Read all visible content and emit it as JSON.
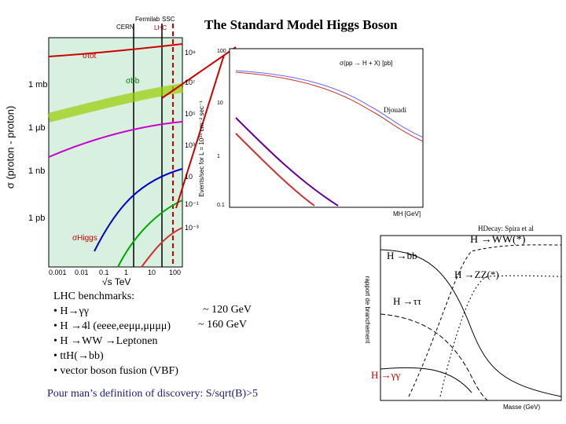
{
  "title": "The Standard Model Higgs Boson",
  "left_plot": {
    "labels_top": [
      "CERN",
      "Fermilab",
      "SSC",
      "LHC"
    ],
    "y_labels": [
      "1 mb",
      "1 μb",
      "1 nb",
      "1 pb"
    ],
    "x_ticks": [
      "0.001",
      "0.01",
      "0.1",
      "1",
      "10",
      "100"
    ],
    "x_label": "√s  TeV",
    "y_label": "σ (proton - proton)",
    "y2_ticks": [
      "10⁹",
      "10⁷",
      "10⁵",
      "10³",
      "10",
      "10⁻¹",
      "10⁻³"
    ],
    "y2_label": "Events/sec for L = 10³⁴ cm⁻² sec⁻¹",
    "curves": [
      "σtot",
      "σbb",
      "σHiggs"
    ]
  },
  "middle_plot": {
    "credit": "Djouadi",
    "legend": "σ(pp → H + X) [pb]",
    "x_label": "MH [GeV]",
    "y_ticks": [
      "100",
      "10",
      "1",
      "0.1"
    ]
  },
  "right_plot": {
    "credit": "HDecay: Spira et al",
    "labels": [
      "H →bb",
      "H →WW(*)",
      "H →ZZ(*)",
      "H →ττ",
      "H →γγ"
    ],
    "x_label": "Masse (GeV)",
    "y_label": "rapport de branchement"
  },
  "benchmarks": {
    "heading": "LHC benchmarks:",
    "items": [
      "• H→γγ",
      "• H →4l (eeee,eeμμ,μμμμ)",
      "• H →WW →Leptonen",
      "• ttH(→bb)",
      "• vector boson fusion (VBF)"
    ],
    "masses": [
      "~ 120 GeV",
      "~ 160 GeV"
    ]
  },
  "footer": "Pour man’s definition of discovery: S/sqrt(B)>5"
}
